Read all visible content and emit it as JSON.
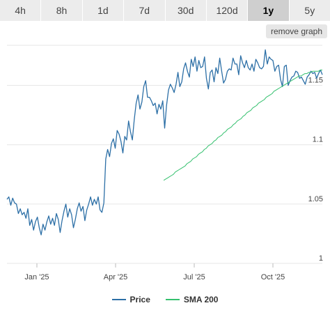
{
  "ranges": [
    {
      "label": "4h",
      "active": false
    },
    {
      "label": "8h",
      "active": false
    },
    {
      "label": "1d",
      "active": false
    },
    {
      "label": "7d",
      "active": false
    },
    {
      "label": "30d",
      "active": false
    },
    {
      "label": "120d",
      "active": false
    },
    {
      "label": "1y",
      "active": true
    },
    {
      "label": "5y",
      "active": false
    }
  ],
  "remove_graph_label": "remove graph",
  "colors": {
    "price": "#2c6fa6",
    "sma": "#34c06e",
    "grid": "#e6e6e6"
  },
  "legend": [
    {
      "label": "Price",
      "color": "#2c6fa6"
    },
    {
      "label": "SMA 200",
      "color": "#34c06e"
    }
  ],
  "chart_data": {
    "type": "line",
    "x_ticks": [
      "Jan '25",
      "Apr '25",
      "Jul '25",
      "Oct '25"
    ],
    "y_ticks": [
      "1",
      "1.05",
      "1.1",
      "1.15"
    ],
    "ylim": [
      1.0,
      1.185
    ],
    "grid": true,
    "legend_position": "bottom",
    "series": [
      {
        "name": "Price",
        "values": [
          1.054,
          1.056,
          1.049,
          1.055,
          1.051,
          1.05,
          1.042,
          1.046,
          1.041,
          1.043,
          1.038,
          1.046,
          1.032,
          1.037,
          1.028,
          1.035,
          1.039,
          1.03,
          1.024,
          1.033,
          1.028,
          1.035,
          1.04,
          1.033,
          1.038,
          1.032,
          1.042,
          1.037,
          1.026,
          1.036,
          1.044,
          1.05,
          1.039,
          1.046,
          1.041,
          1.03,
          1.037,
          1.046,
          1.051,
          1.044,
          1.048,
          1.036,
          1.045,
          1.05,
          1.056,
          1.049,
          1.054,
          1.05,
          1.056,
          1.045,
          1.043,
          1.051,
          1.088,
          1.096,
          1.09,
          1.101,
          1.105,
          1.097,
          1.112,
          1.109,
          1.103,
          1.093,
          1.107,
          1.104,
          1.12,
          1.111,
          1.104,
          1.121,
          1.135,
          1.142,
          1.13,
          1.136,
          1.149,
          1.154,
          1.14,
          1.14,
          1.137,
          1.133,
          1.135,
          1.126,
          1.134,
          1.13,
          1.137,
          1.114,
          1.133,
          1.146,
          1.151,
          1.148,
          1.144,
          1.151,
          1.161,
          1.149,
          1.153,
          1.164,
          1.169,
          1.162,
          1.157,
          1.172,
          1.166,
          1.174,
          1.162,
          1.171,
          1.165,
          1.166,
          1.174,
          1.156,
          1.147,
          1.161,
          1.163,
          1.153,
          1.165,
          1.16,
          1.173,
          1.162,
          1.152,
          1.155,
          1.162,
          1.164,
          1.163,
          1.173,
          1.168,
          1.168,
          1.159,
          1.175,
          1.169,
          1.165,
          1.171,
          1.165,
          1.163,
          1.168,
          1.162,
          1.172,
          1.169,
          1.165,
          1.164,
          1.166,
          1.18,
          1.168,
          1.174,
          1.172,
          1.171,
          1.162,
          1.166,
          1.167,
          1.155,
          1.149,
          1.166,
          1.167,
          1.15,
          1.154,
          1.157,
          1.158,
          1.162,
          1.161,
          1.156,
          1.157,
          1.154,
          1.151,
          1.157,
          1.159,
          1.162,
          1.16,
          1.161,
          1.156,
          1.16,
          1.163,
          1.159
        ]
      },
      {
        "name": "SMA 200",
        "values": [
          null,
          null,
          null,
          null,
          null,
          null,
          null,
          null,
          null,
          null,
          null,
          null,
          null,
          null,
          null,
          null,
          null,
          null,
          null,
          null,
          null,
          null,
          null,
          null,
          null,
          null,
          null,
          null,
          null,
          null,
          null,
          null,
          null,
          null,
          null,
          null,
          null,
          null,
          null,
          null,
          null,
          null,
          null,
          null,
          null,
          null,
          null,
          null,
          null,
          null,
          null,
          null,
          null,
          null,
          null,
          null,
          null,
          null,
          null,
          null,
          null,
          null,
          null,
          null,
          null,
          null,
          null,
          null,
          null,
          null,
          null,
          null,
          null,
          null,
          null,
          null,
          null,
          null,
          null,
          null,
          null,
          1.07,
          1.071,
          1.072,
          1.073,
          1.074,
          1.075,
          1.077,
          1.078,
          1.079,
          1.08,
          1.081,
          1.082,
          1.084,
          1.085,
          1.086,
          1.088,
          1.089,
          1.09,
          1.092,
          1.093,
          1.094,
          1.096,
          1.097,
          1.099,
          1.1,
          1.101,
          1.103,
          1.104,
          1.106,
          1.107,
          1.108,
          1.11,
          1.111,
          1.113,
          1.114,
          1.115,
          1.117,
          1.118,
          1.12,
          1.121,
          1.122,
          1.124,
          1.125,
          1.127,
          1.128,
          1.129,
          1.131,
          1.132,
          1.133,
          1.135,
          1.136,
          1.137,
          1.138,
          1.14,
          1.141,
          1.142,
          1.143,
          1.145,
          1.146,
          1.147,
          1.148,
          1.149,
          1.15,
          1.151,
          1.152,
          1.153,
          1.154,
          1.155,
          1.156,
          1.157,
          1.158,
          1.158,
          1.159,
          1.16,
          1.16,
          1.161,
          1.161,
          1.162,
          1.162,
          1.162,
          1.162,
          1.163,
          1.163
        ]
      }
    ]
  }
}
